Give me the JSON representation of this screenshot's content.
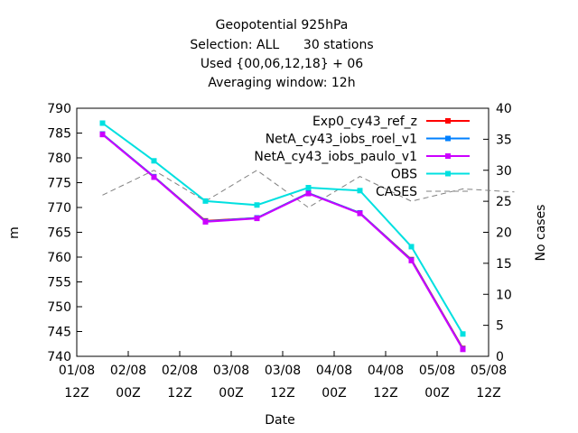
{
  "chart_data": {
    "type": "line",
    "title": [
      "Geopotential 925hPa",
      "Selection: ALL      30 stations",
      "Used {00,06,12,18} + 06",
      "Averaging window: 12h"
    ],
    "xlabel": "Date",
    "ylabel": "m",
    "y2label": "No cases",
    "x_ticks": [
      {
        "date": "01/08",
        "hour": "12Z"
      },
      {
        "date": "02/08",
        "hour": "00Z"
      },
      {
        "date": "02/08",
        "hour": "12Z"
      },
      {
        "date": "03/08",
        "hour": "00Z"
      },
      {
        "date": "03/08",
        "hour": "12Z"
      },
      {
        "date": "04/08",
        "hour": "00Z"
      },
      {
        "date": "04/08",
        "hour": "12Z"
      },
      {
        "date": "05/08",
        "hour": "00Z"
      },
      {
        "date": "05/08",
        "hour": "12Z"
      }
    ],
    "x": [
      "01/08 18Z",
      "02/08 06Z",
      "02/08 18Z",
      "03/08 06Z",
      "03/08 18Z",
      "04/08 06Z",
      "04/08 18Z",
      "05/08 06Z"
    ],
    "ylim": [
      740,
      790
    ],
    "yticks": [
      740,
      745,
      750,
      755,
      760,
      765,
      770,
      775,
      780,
      785,
      790
    ],
    "y2lim": [
      0,
      40
    ],
    "y2ticks": [
      0,
      5,
      10,
      15,
      20,
      25,
      30,
      35,
      40
    ],
    "legend_position": "top-right",
    "grid": false,
    "series": [
      {
        "name": "Exp0_cy43_ref_z",
        "color": "#ff0000",
        "values": [
          784.8,
          776.2,
          767.3,
          767.9,
          772.9,
          768.9,
          759.5,
          741.6
        ]
      },
      {
        "name": "NetA_cy43_iobs_roel_v1",
        "color": "#0080ff",
        "values": [
          784.8,
          776.2,
          767.2,
          767.9,
          772.9,
          768.9,
          759.4,
          741.5
        ]
      },
      {
        "name": "NetA_cy43_iobs_paulo_v1",
        "color": "#cc00ff",
        "values": [
          784.7,
          776.1,
          767.1,
          767.8,
          772.8,
          768.8,
          759.3,
          741.4
        ]
      },
      {
        "name": "OBS",
        "color": "#00e0e0",
        "values": [
          787.0,
          779.4,
          771.3,
          770.5,
          774.0,
          773.4,
          762.1,
          744.5
        ]
      }
    ],
    "cases": {
      "name": "CASES",
      "color": "#808080",
      "x": [
        "01/08 18Z",
        "02/08 06Z",
        "02/08 18Z",
        "03/08 06Z",
        "03/08 18Z",
        "04/08 06Z",
        "04/08 18Z",
        "05/08 06Z",
        "05/08 18Z"
      ],
      "values": [
        26,
        30,
        25,
        30,
        24,
        29,
        25,
        27,
        26.5
      ]
    }
  }
}
